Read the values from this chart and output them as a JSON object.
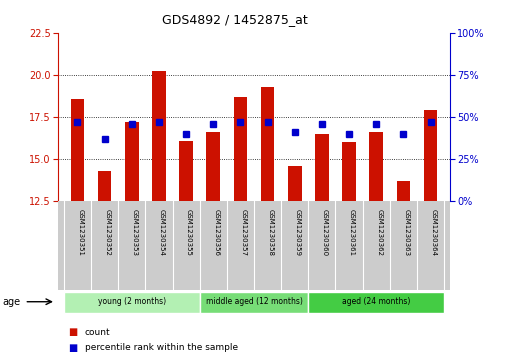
{
  "title": "GDS4892 / 1452875_at",
  "samples": [
    "GSM1230351",
    "GSM1230352",
    "GSM1230353",
    "GSM1230354",
    "GSM1230355",
    "GSM1230356",
    "GSM1230357",
    "GSM1230358",
    "GSM1230359",
    "GSM1230360",
    "GSM1230361",
    "GSM1230362",
    "GSM1230363",
    "GSM1230364"
  ],
  "count_values": [
    18.6,
    14.3,
    17.2,
    20.2,
    16.1,
    16.6,
    18.7,
    19.3,
    14.6,
    16.5,
    16.0,
    16.6,
    13.7,
    17.9
  ],
  "percentile_values": [
    47,
    37,
    46,
    47,
    40,
    46,
    47,
    47,
    41,
    46,
    40,
    46,
    40,
    47
  ],
  "ylim_left": [
    12.5,
    22.5
  ],
  "ylim_right": [
    0,
    100
  ],
  "yticks_left": [
    12.5,
    15.0,
    17.5,
    20.0,
    22.5
  ],
  "yticks_right": [
    0,
    25,
    50,
    75,
    100
  ],
  "ytick_labels_right": [
    "0%",
    "25%",
    "50%",
    "75%",
    "100%"
  ],
  "bar_color": "#cc1100",
  "dot_color": "#0000cc",
  "bar_bottom": 12.5,
  "groups": [
    {
      "label": "young (2 months)",
      "start": 0,
      "end": 5,
      "color": "#b3f0b3"
    },
    {
      "label": "middle aged (12 months)",
      "start": 5,
      "end": 9,
      "color": "#77dd77"
    },
    {
      "label": "aged (24 months)",
      "start": 9,
      "end": 14,
      "color": "#44cc44"
    }
  ],
  "age_label": "age",
  "legend_count_label": "count",
  "legend_percentile_label": "percentile rank within the sample",
  "grid_color": "#000000",
  "axis_left_color": "#cc1100",
  "axis_right_color": "#0000cc",
  "bg_color": "#ffffff",
  "tick_label_area_color": "#cccccc",
  "bar_width": 0.5
}
